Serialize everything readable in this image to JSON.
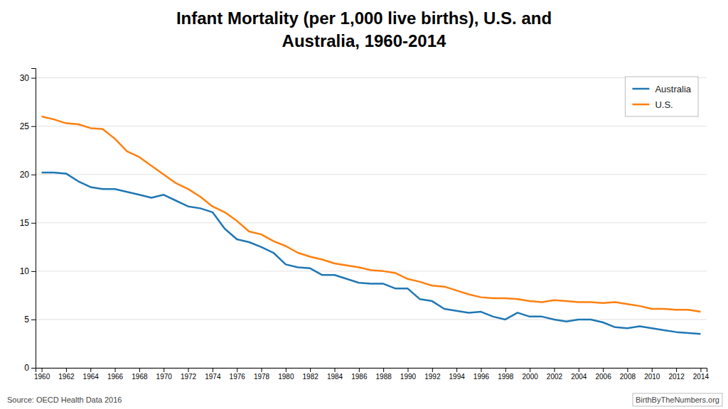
{
  "chart_data": {
    "type": "line",
    "title": "Infant Mortality (per 1,000 live births), U.S. and",
    "subtitle": "Australia, 1960-2014",
    "annotations": [
      "Source: OECD Health Data 2016",
      "BirthByTheNumbers.org"
    ],
    "x": [
      1960,
      1961,
      1962,
      1963,
      1964,
      1965,
      1966,
      1967,
      1968,
      1969,
      1970,
      1971,
      1972,
      1973,
      1974,
      1975,
      1976,
      1977,
      1978,
      1979,
      1980,
      1981,
      1982,
      1983,
      1984,
      1985,
      1986,
      1987,
      1988,
      1989,
      1990,
      1991,
      1992,
      1993,
      1994,
      1995,
      1996,
      1997,
      1998,
      1999,
      2000,
      2001,
      2002,
      2003,
      2004,
      2005,
      2006,
      2007,
      2008,
      2009,
      2010,
      2011,
      2012,
      2013,
      2014
    ],
    "series": [
      {
        "name": "Australia",
        "values": [
          20.2,
          20.2,
          20.1,
          19.3,
          18.7,
          18.5,
          18.5,
          18.2,
          17.9,
          17.6,
          17.9,
          17.3,
          16.7,
          16.5,
          16.1,
          14.4,
          13.3,
          13.0,
          12.5,
          11.9,
          10.7,
          10.4,
          10.3,
          9.6,
          9.6,
          9.2,
          8.8,
          8.7,
          8.7,
          8.2,
          8.2,
          7.1,
          6.9,
          6.1,
          5.9,
          5.7,
          5.8,
          5.3,
          5.0,
          5.7,
          5.3,
          5.3,
          5.0,
          4.8,
          5.0,
          5.0,
          4.7,
          4.2,
          4.1,
          4.3,
          4.1,
          3.9,
          3.7,
          3.6,
          3.5
        ]
      },
      {
        "name": "U.S.",
        "values": [
          26.0,
          25.7,
          25.3,
          25.2,
          24.8,
          24.7,
          23.7,
          22.4,
          21.8,
          20.9,
          20.0,
          19.1,
          18.5,
          17.7,
          16.7,
          16.1,
          15.2,
          14.1,
          13.8,
          13.1,
          12.6,
          11.9,
          11.5,
          11.2,
          10.8,
          10.6,
          10.4,
          10.1,
          10.0,
          9.8,
          9.2,
          8.9,
          8.5,
          8.4,
          8.0,
          7.6,
          7.3,
          7.2,
          7.2,
          7.1,
          6.9,
          6.8,
          7.0,
          6.9,
          6.8,
          6.8,
          6.7,
          6.8,
          6.6,
          6.4,
          6.1,
          6.1,
          6.0,
          6.0,
          5.8
        ]
      }
    ],
    "xlim": [
      1959.5,
      2014.5
    ],
    "xticks": [
      1960,
      1962,
      1964,
      1966,
      1968,
      1970,
      1972,
      1974,
      1976,
      1978,
      1980,
      1982,
      1984,
      1986,
      1988,
      1990,
      1992,
      1994,
      1996,
      1998,
      2000,
      2002,
      2004,
      2006,
      2008,
      2010,
      2012,
      2014
    ],
    "ylim": [
      0,
      31
    ],
    "yticks": [
      0,
      5,
      10,
      15,
      20,
      25,
      30
    ],
    "grid": true,
    "legend": "upper right"
  }
}
